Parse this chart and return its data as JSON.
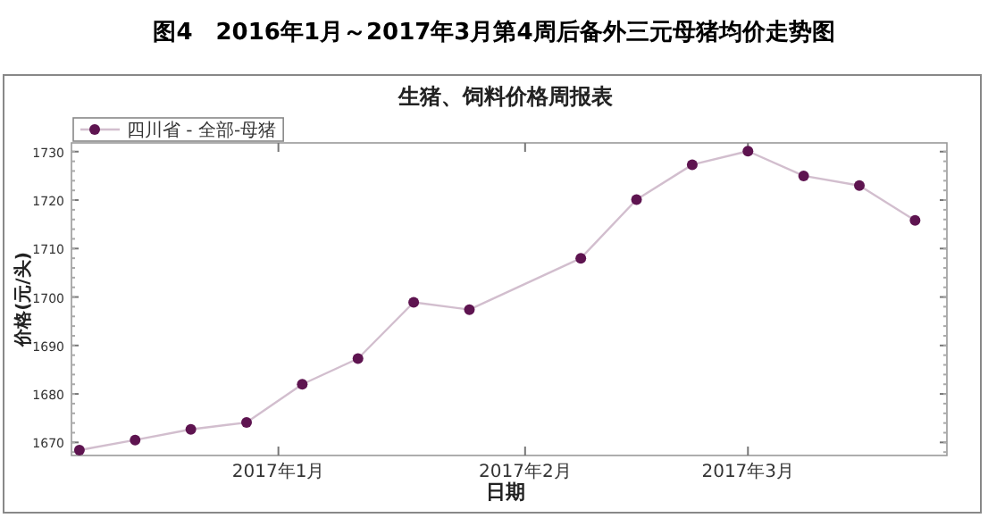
{
  "chart_data": {
    "type": "line",
    "title": "图4　2016年1月～2017年3月第4周后备外三元母猪均价走势图",
    "subtitle": "生猪、饲料价格周报表",
    "xlabel": "日期",
    "ylabel": "价格(元/头)",
    "x": [
      "2016-12-07",
      "2016-12-14",
      "2016-12-21",
      "2016-12-28",
      "2017-01-04",
      "2017-01-11",
      "2017-01-18",
      "2017-01-25",
      "2017-02-08",
      "2017-02-15",
      "2017-02-22",
      "2017-03-01",
      "2017-03-08",
      "2017-03-15",
      "2017-03-22"
    ],
    "series": [
      {
        "name": "四川省 - 全部-母猪",
        "color": "#5e1450",
        "values": [
          1668.4,
          1670.5,
          1672.7,
          1674.1,
          1682.0,
          1687.3,
          1698.9,
          1697.4,
          1708.0,
          1720.1,
          1727.3,
          1730.1,
          1725.0,
          1723.0,
          1715.8
        ]
      }
    ],
    "xlim": [
      "2016-12-06",
      "2017-03-26"
    ],
    "xticks": [
      {
        "value": "2017-01-01",
        "label": "2017年1月"
      },
      {
        "value": "2017-02-01",
        "label": "2017年2月"
      },
      {
        "value": "2017-03-01",
        "label": "2017年3月"
      }
    ],
    "ylim": [
      1667.3,
      1731.8
    ],
    "yticks": [
      1670,
      1680,
      1690,
      1700,
      1710,
      1720,
      1730
    ],
    "grid": false,
    "legend": "top left",
    "marker": "circle",
    "line_style": "solid"
  }
}
